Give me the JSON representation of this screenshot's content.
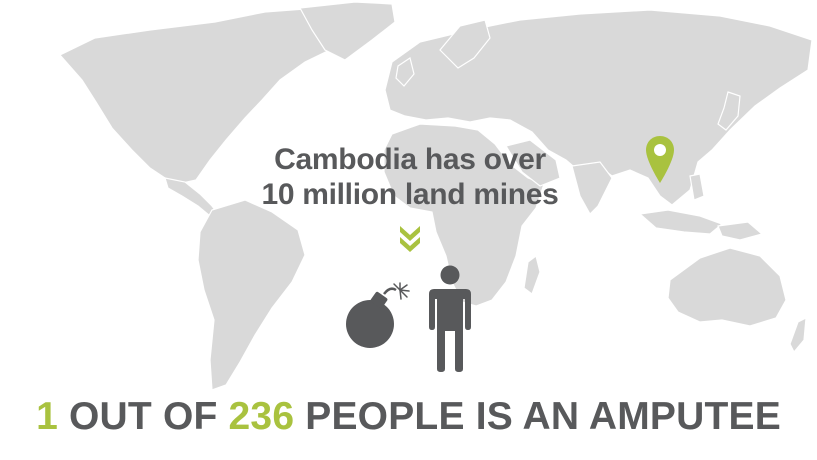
{
  "headline": {
    "line1": "Cambodia has over",
    "line2": "10 million land mines"
  },
  "statistic": {
    "count": "1",
    "text_a": " OUT OF ",
    "total": "236",
    "text_b": " PEOPLE IS AN AMPUTEE"
  },
  "map": {
    "marker_location": "Cambodia",
    "land_color": "#d9d9d9",
    "accent_color": "#a9c23f",
    "text_color": "#58595b"
  },
  "icons": {
    "marker": "map-pin-icon",
    "arrow": "double-chevron-down-icon",
    "bomb": "bomb-icon",
    "person": "person-icon"
  }
}
